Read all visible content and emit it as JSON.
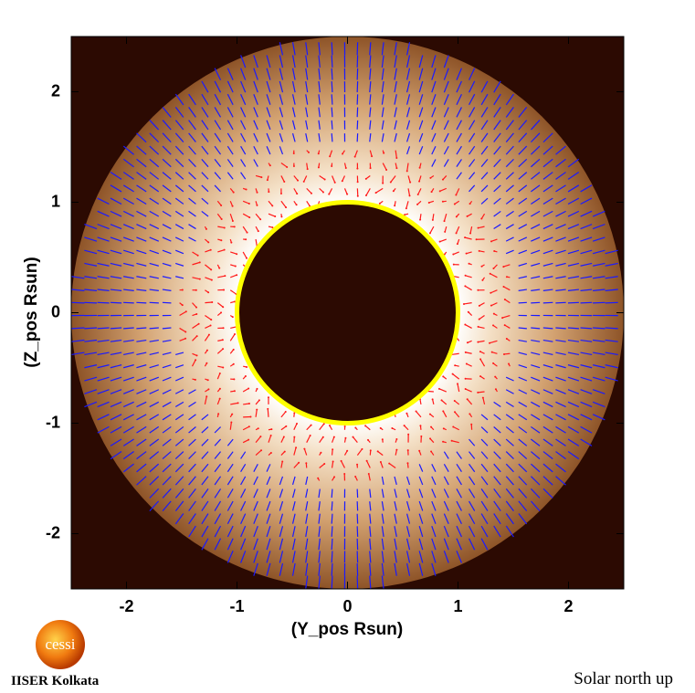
{
  "chart_data": {
    "type": "coronal-field-map",
    "xlabel": "(Y_pos Rsun)",
    "ylabel": "(Z_pos Rsun)",
    "xlim": [
      -2.5,
      2.5
    ],
    "ylim": [
      -2.5,
      2.5
    ],
    "xticks": [
      -2,
      -1,
      0,
      1,
      2
    ],
    "yticks": [
      -2,
      -1,
      0,
      1,
      2
    ],
    "disk_radius": 1,
    "outer_radius": 2.5,
    "disk_color": "#ffff00",
    "open_field_color": "#1a1aff",
    "closed_field_color": "#ff1a1a"
  },
  "footer": {
    "logo": "cessi",
    "institute": "IISER Kolkata",
    "orientation": "Solar north up"
  }
}
